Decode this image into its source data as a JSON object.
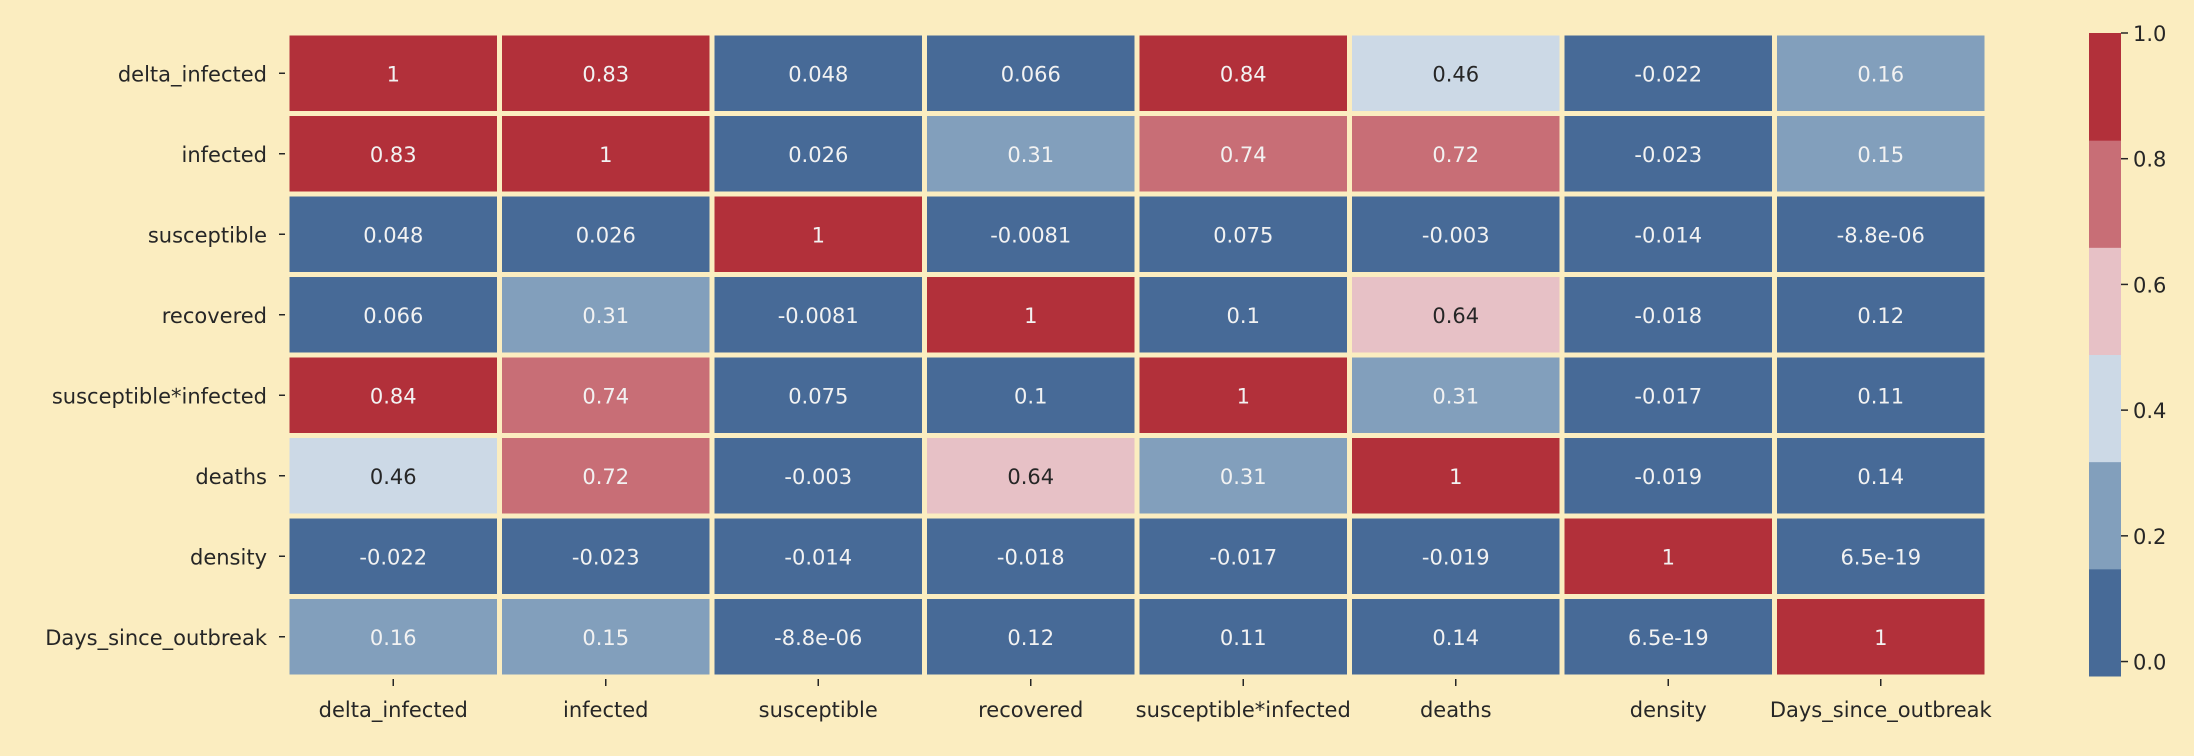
{
  "chart_data": {
    "type": "heatmap",
    "title": "",
    "xlabel": "",
    "ylabel": "",
    "rows": [
      "delta_infected",
      "infected",
      "susceptible",
      "recovered",
      "susceptible*infected",
      "deaths",
      "density",
      "Days_since_outbreak"
    ],
    "columns": [
      "delta_infected",
      "infected",
      "susceptible",
      "recovered",
      "susceptible*infected",
      "deaths",
      "density",
      "Days_since_outbreak"
    ],
    "cell_labels": [
      [
        "1",
        "0.83",
        "0.048",
        "0.066",
        "0.84",
        "0.46",
        "-0.022",
        "0.16"
      ],
      [
        "0.83",
        "1",
        "0.026",
        "0.31",
        "0.74",
        "0.72",
        "-0.023",
        "0.15"
      ],
      [
        "0.048",
        "0.026",
        "1",
        "-0.0081",
        "0.075",
        "-0.003",
        "-0.014",
        "-8.8e-06"
      ],
      [
        "0.066",
        "0.31",
        "-0.0081",
        "1",
        "0.1",
        "0.64",
        "-0.018",
        "0.12"
      ],
      [
        "0.84",
        "0.74",
        "0.075",
        "0.1",
        "1",
        "0.31",
        "-0.017",
        "0.11"
      ],
      [
        "0.46",
        "0.72",
        "-0.003",
        "0.64",
        "0.31",
        "1",
        "-0.019",
        "0.14"
      ],
      [
        "-0.022",
        "-0.023",
        "-0.014",
        "-0.018",
        "-0.017",
        "-0.019",
        "1",
        "6.5e-19"
      ],
      [
        "0.16",
        "0.15",
        "-8.8e-06",
        "0.12",
        "0.11",
        "0.14",
        "6.5e-19",
        "1"
      ]
    ],
    "values": [
      [
        1,
        0.83,
        0.048,
        0.066,
        0.84,
        0.46,
        -0.022,
        0.16
      ],
      [
        0.83,
        1,
        0.026,
        0.31,
        0.74,
        0.72,
        -0.023,
        0.15
      ],
      [
        0.048,
        0.026,
        1,
        -0.0081,
        0.075,
        -0.003,
        -0.014,
        -8.8e-06
      ],
      [
        0.066,
        0.31,
        -0.0081,
        1,
        0.1,
        0.64,
        -0.018,
        0.12
      ],
      [
        0.84,
        0.74,
        0.075,
        0.1,
        1,
        0.31,
        -0.017,
        0.11
      ],
      [
        0.46,
        0.72,
        -0.003,
        0.64,
        0.31,
        1,
        -0.019,
        0.14
      ],
      [
        -0.022,
        -0.023,
        -0.014,
        -0.018,
        -0.017,
        -0.019,
        1,
        6.5e-19
      ],
      [
        0.16,
        0.15,
        -8.8e-06,
        0.12,
        0.11,
        0.14,
        6.5e-19,
        1
      ]
    ],
    "colorbar": {
      "range": [
        -0.023,
        1.0
      ],
      "ticks": [
        "0.0",
        "0.2",
        "0.4",
        "0.6",
        "0.8",
        "1.0"
      ],
      "tick_values": [
        0,
        0.2,
        0.4,
        0.6,
        0.8,
        1.0
      ],
      "colors": [
        "#476A97",
        "#829FBC",
        "#CCD9E6",
        "#E7C1C6",
        "#C86E76",
        "#B2303A"
      ]
    },
    "grid": false,
    "legend": "colorbar-right"
  },
  "colors": {
    "background": "#FBEDC0",
    "cell_border": "#FFFFFF",
    "text_dark": "#262626",
    "text_light": "#F2F2F2",
    "axis_text": "#262626"
  }
}
